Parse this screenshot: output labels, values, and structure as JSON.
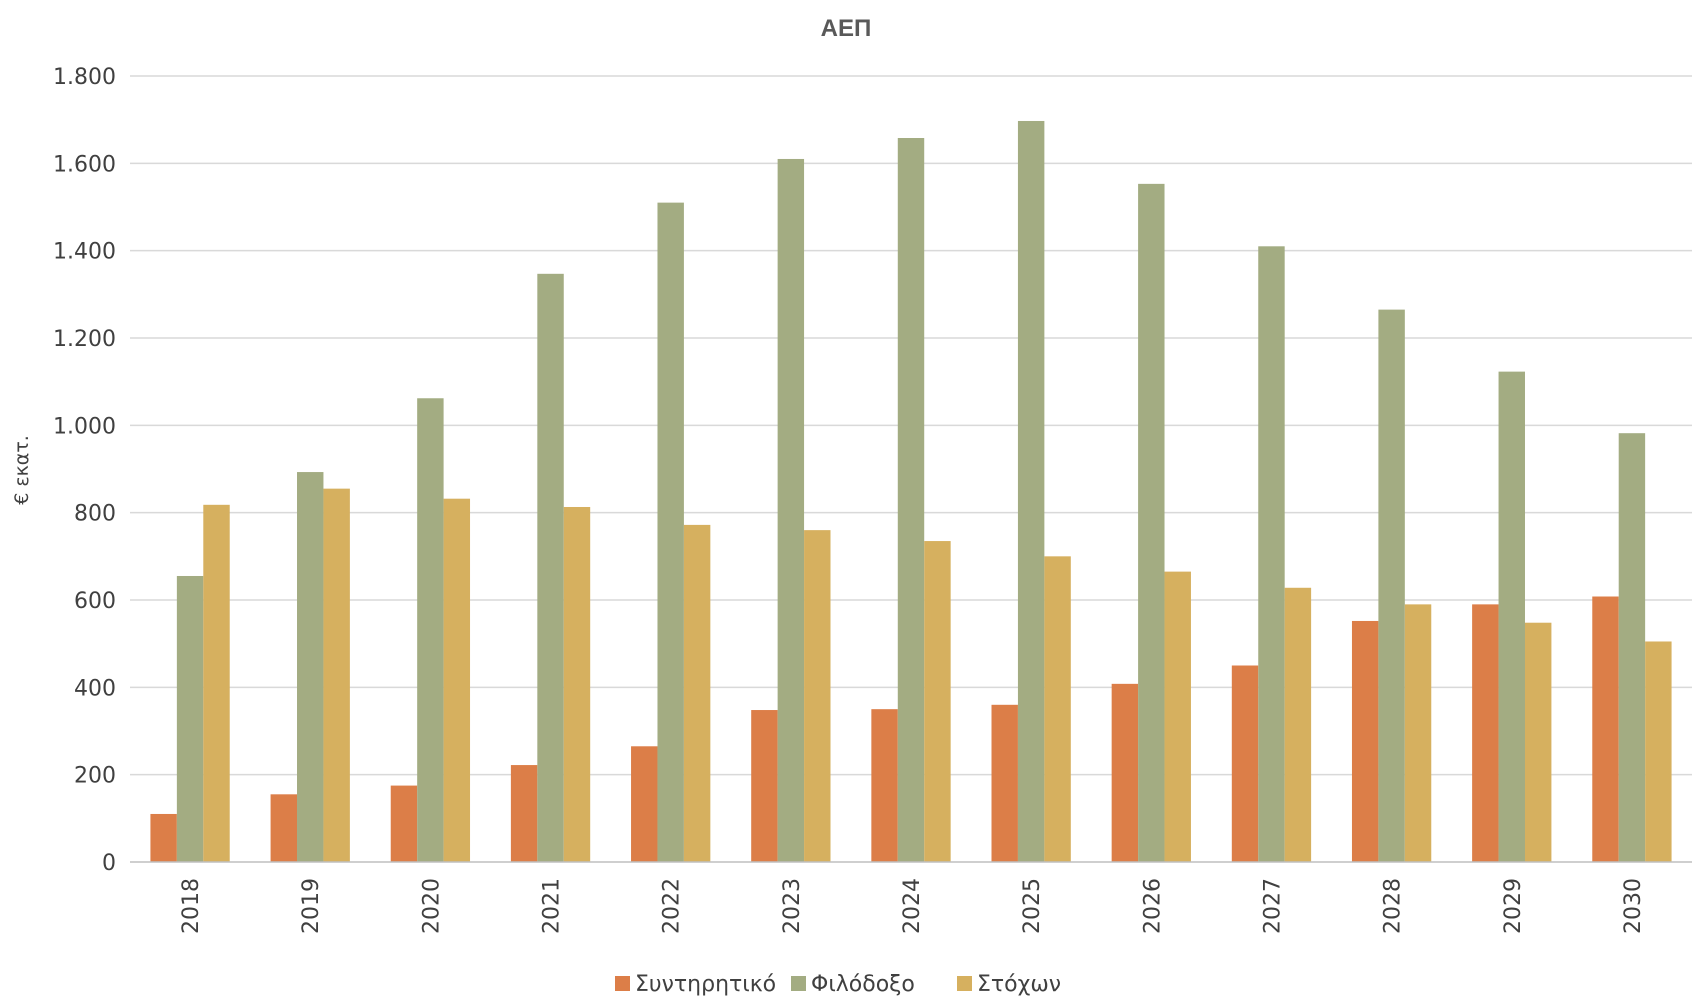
{
  "chart_data": {
    "type": "bar",
    "title": "ΑΕΠ",
    "xlabel": "",
    "ylabel": "€ εκατ.",
    "ylim": [
      0,
      1800
    ],
    "yticks": [
      0,
      200,
      400,
      600,
      800,
      1000,
      1200,
      1400,
      1600,
      1800
    ],
    "ytick_labels": [
      "0",
      "200",
      "400",
      "600",
      "800",
      "1.000",
      "1.200",
      "1.400",
      "1.600",
      "1.800"
    ],
    "grid": true,
    "legend_position": "bottom",
    "categories": [
      "2018",
      "2019",
      "2020",
      "2021",
      "2022",
      "2023",
      "2024",
      "2025",
      "2026",
      "2027",
      "2028",
      "2029",
      "2030"
    ],
    "series": [
      {
        "name": "Συντηρητικό",
        "color": "#DC7E48",
        "values": [
          110,
          155,
          175,
          222,
          265,
          348,
          350,
          360,
          408,
          450,
          552,
          590,
          608
        ]
      },
      {
        "name": "Φιλόδοξο",
        "color": "#A3AC82",
        "values": [
          655,
          893,
          1062,
          1347,
          1510,
          1610,
          1658,
          1697,
          1553,
          1410,
          1265,
          1123,
          982
        ]
      },
      {
        "name": "Στόχων",
        "color": "#D6B05F",
        "values": [
          818,
          855,
          832,
          813,
          772,
          760,
          735,
          700,
          665,
          628,
          590,
          548,
          505
        ]
      }
    ]
  }
}
